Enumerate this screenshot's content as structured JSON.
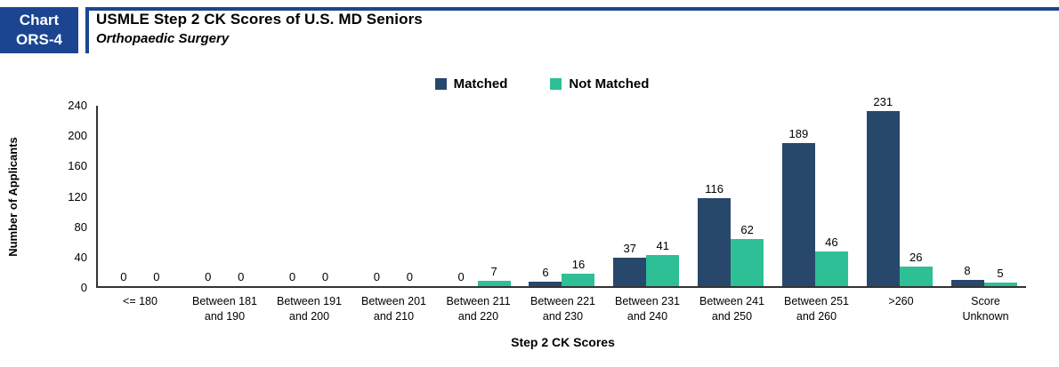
{
  "header": {
    "box": {
      "line1": "Chart",
      "line2": "ORS-4"
    },
    "title": "USMLE Step 2 CK Scores of U.S. MD Seniors",
    "subtitle": "Orthopaedic Surgery",
    "accent_color": "#1B4591"
  },
  "legend": {
    "items": [
      {
        "label": "Matched",
        "color": "#28486B"
      },
      {
        "label": "Not Matched",
        "color": "#2FBF96"
      }
    ]
  },
  "chart_data": {
    "type": "bar",
    "title": "USMLE Step 2 CK Scores of U.S. MD Seniors",
    "subtitle": "Orthopaedic Surgery",
    "categories": [
      "<= 180",
      "Between 181 and 190",
      "Between 191 and 200",
      "Between 201 and 210",
      "Between 211 and 220",
      "Between 221 and 230",
      "Between 231 and 240",
      "Between 241 and 250",
      "Between 251 and 260",
      ">260",
      "Score Unknown"
    ],
    "categories_display": [
      [
        "<= 180"
      ],
      [
        "Between 181",
        "and 190"
      ],
      [
        "Between 191",
        "and 200"
      ],
      [
        "Between 201",
        "and 210"
      ],
      [
        "Between 211",
        "and 220"
      ],
      [
        "Between 221",
        "and 230"
      ],
      [
        "Between 231",
        "and 240"
      ],
      [
        "Between 241",
        "and 250"
      ],
      [
        "Between 251",
        "and 260"
      ],
      [
        ">260"
      ],
      [
        "Score",
        "Unknown"
      ]
    ],
    "series": [
      {
        "name": "Matched",
        "color": "#28486B",
        "values": [
          0,
          0,
          0,
          0,
          0,
          6,
          37,
          116,
          189,
          231,
          8
        ]
      },
      {
        "name": "Not Matched",
        "color": "#2FBF96",
        "values": [
          0,
          0,
          0,
          0,
          7,
          16,
          41,
          62,
          46,
          26,
          5
        ]
      }
    ],
    "xlabel": "Step 2 CK Scores",
    "ylabel": "Number of Applicants",
    "ylim": [
      0,
      240
    ],
    "yticks": [
      0,
      40,
      80,
      120,
      160,
      200,
      240
    ],
    "grid": false,
    "legend_position": "top",
    "bar_value_labels": true,
    "axis_color": "#333333"
  }
}
